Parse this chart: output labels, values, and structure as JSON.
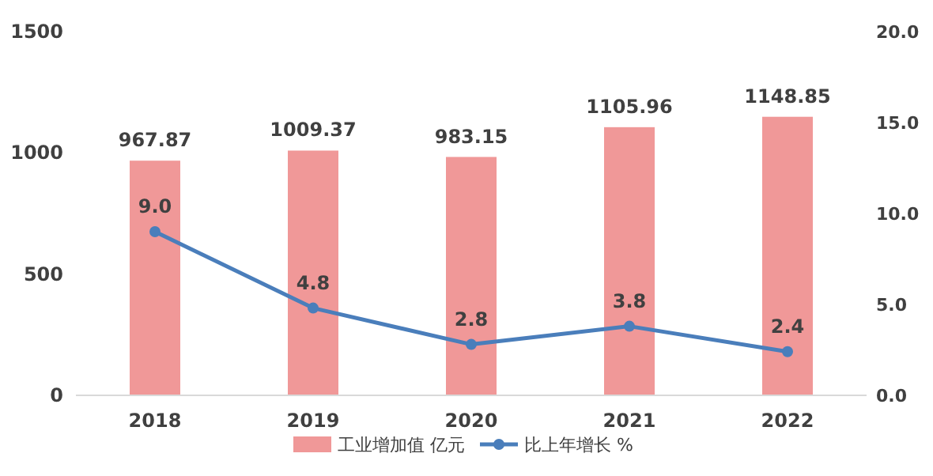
{
  "chart_data": {
    "type": "bar",
    "categories": [
      "2018",
      "2019",
      "2020",
      "2021",
      "2022"
    ],
    "series": [
      {
        "name": "工业增加值 亿元",
        "color": "#f09898",
        "values": [
          967.87,
          1009.37,
          983.15,
          1105.96,
          1148.85
        ],
        "value_labels": [
          "967.87",
          "1009.37",
          "983.15",
          "1105.96",
          "1148.85"
        ]
      },
      {
        "name": "比上年增长 %",
        "type": "line",
        "axis": "y2",
        "color": "#4a7ebb",
        "marker": "circle",
        "values": [
          9.0,
          4.8,
          2.8,
          3.8,
          2.4
        ],
        "value_labels": [
          "9.0",
          "4.8",
          "2.8",
          "3.8",
          "2.4"
        ]
      }
    ],
    "ylim": [
      0,
      1500
    ],
    "yticks": [
      0,
      500,
      1000,
      1500
    ],
    "y2lim": [
      0,
      20
    ],
    "y2ticks": [
      {
        "value": 0,
        "label": "0.0"
      },
      {
        "value": 5,
        "label": "5.0"
      },
      {
        "value": 10,
        "label": "10.0"
      },
      {
        "value": 15,
        "label": "15.0"
      },
      {
        "value": 20,
        "label": "20.0"
      }
    ],
    "legend": "bottom",
    "grid": false
  }
}
